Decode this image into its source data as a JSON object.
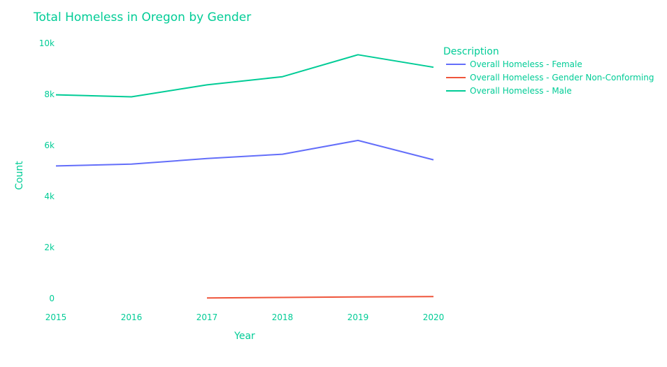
{
  "chart_data": {
    "type": "line",
    "title": "Total Homeless in Oregon by Gender",
    "xlabel": "Year",
    "ylabel": "Count",
    "x_ticks": [
      "2015",
      "2016",
      "2017",
      "2018",
      "2019",
      "2020"
    ],
    "y_ticks": [
      "0",
      "2k",
      "4k",
      "6k",
      "8k",
      "10k"
    ],
    "y_tick_values": [
      0,
      2000,
      4000,
      6000,
      8000,
      10000
    ],
    "xlim": [
      2015,
      2020
    ],
    "ylim": [
      -600,
      10500
    ],
    "grid": false,
    "legend": {
      "title": "Description",
      "placement": "top-right"
    },
    "series": [
      {
        "name": "Overall Homeless - Female",
        "color": "#636efa",
        "x": [
          2015,
          2016,
          2017,
          2018,
          2019,
          2020
        ],
        "values": [
          5200,
          5270,
          5490,
          5660,
          6200,
          5440
        ]
      },
      {
        "name": "Overall Homeless - Gender Non-Conforming",
        "color": "#ef553b",
        "x": [
          2017,
          2018,
          2019,
          2020
        ],
        "values": [
          25,
          45,
          65,
          80
        ]
      },
      {
        "name": "Overall Homeless - Male",
        "color": "#00cc96",
        "x": [
          2015,
          2016,
          2017,
          2018,
          2019,
          2020
        ],
        "values": [
          7990,
          7910,
          8380,
          8700,
          9560,
          9070
        ]
      }
    ]
  },
  "text_color": "#00cc96",
  "background": "#ffffff"
}
